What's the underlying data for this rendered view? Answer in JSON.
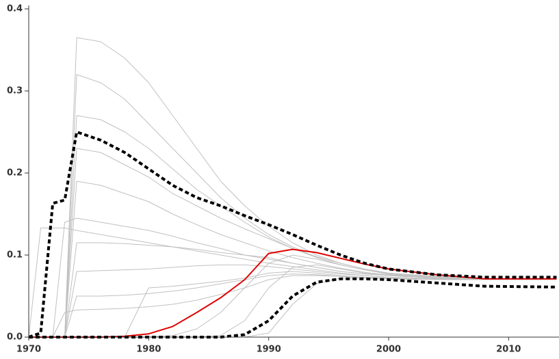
{
  "chart_data": {
    "type": "line",
    "x": [
      1970,
      1971,
      1972,
      1973,
      1974,
      1976,
      1978,
      1980,
      1982,
      1984,
      1986,
      1988,
      1990,
      1992,
      1994,
      1996,
      1998,
      2000,
      2004,
      2008,
      2014
    ],
    "xlim": [
      1970,
      2014.2
    ],
    "xticks": [
      1970,
      1980,
      1990,
      2000,
      2010
    ],
    "ylim": [
      0,
      0.4
    ],
    "yticks": [
      {
        "value": 0,
        "label": "0.0"
      },
      {
        "value": 0.1,
        "label": "0.1"
      },
      {
        "value": 0.2,
        "label": "0.2"
      },
      {
        "value": 0.3,
        "label": "0.3"
      },
      {
        "value": 0.4,
        "label": "0.4"
      }
    ],
    "series": [
      {
        "color": "#c0c0c0",
        "values": [
          0,
          0,
          0,
          0,
          0.365,
          0.36,
          0.34,
          0.31,
          0.27,
          0.23,
          0.19,
          0.16,
          0.135,
          0.115,
          0.1,
          0.09,
          0.083,
          0.078,
          0.073,
          0.071,
          0.07
        ]
      },
      {
        "color": "#c0c0c0",
        "values": [
          0,
          0,
          0,
          0,
          0.32,
          0.31,
          0.29,
          0.26,
          0.23,
          0.2,
          0.17,
          0.145,
          0.125,
          0.11,
          0.097,
          0.088,
          0.082,
          0.077,
          0.072,
          0.07,
          0.07
        ]
      },
      {
        "color": "#c0c0c0",
        "values": [
          0,
          0,
          0,
          0,
          0.27,
          0.265,
          0.25,
          0.23,
          0.205,
          0.18,
          0.16,
          0.14,
          0.122,
          0.108,
          0.097,
          0.088,
          0.082,
          0.077,
          0.072,
          0.07,
          0.07
        ]
      },
      {
        "color": "#c0c0c0",
        "values": [
          0,
          0,
          0,
          0,
          0.23,
          0.225,
          0.21,
          0.195,
          0.175,
          0.16,
          0.145,
          0.132,
          0.12,
          0.108,
          0.098,
          0.09,
          0.083,
          0.078,
          0.073,
          0.071,
          0.07
        ]
      },
      {
        "color": "#c0c0c0",
        "values": [
          0,
          0,
          0,
          0,
          0.19,
          0.185,
          0.175,
          0.165,
          0.15,
          0.137,
          0.125,
          0.115,
          0.105,
          0.097,
          0.09,
          0.084,
          0.079,
          0.076,
          0.072,
          0.07,
          0.07
        ]
      },
      {
        "color": "#c0c0c0",
        "values": [
          0,
          0,
          0,
          0.14,
          0.145,
          0.14,
          0.135,
          0.13,
          0.123,
          0.115,
          0.108,
          0.1,
          0.095,
          0.09,
          0.085,
          0.08,
          0.077,
          0.075,
          0.072,
          0.07,
          0.07
        ]
      },
      {
        "color": "#c0c0c0",
        "values": [
          0,
          0.133,
          0.133,
          0.133,
          0.13,
          0.125,
          0.12,
          0.115,
          0.11,
          0.105,
          0.1,
          0.095,
          0.09,
          0.086,
          0.082,
          0.078,
          0.075,
          0.073,
          0.071,
          0.07,
          0.07
        ]
      },
      {
        "color": "#c0c0c0",
        "values": [
          0,
          0,
          0,
          0,
          0.115,
          0.115,
          0.114,
          0.112,
          0.11,
          0.107,
          0.103,
          0.1,
          0.097,
          0.09,
          0.085,
          0.08,
          0.077,
          0.075,
          0.072,
          0.07,
          0.07
        ]
      },
      {
        "color": "#c0c0c0",
        "values": [
          0,
          0,
          0,
          0,
          0.08,
          0.081,
          0.082,
          0.083,
          0.085,
          0.087,
          0.088,
          0.088,
          0.086,
          0.083,
          0.08,
          0.077,
          0.075,
          0.073,
          0.071,
          0.07,
          0.07
        ]
      },
      {
        "color": "#c0c0c0",
        "values": [
          0,
          0,
          0,
          0,
          0.05,
          0.05,
          0.051,
          0.053,
          0.056,
          0.06,
          0.065,
          0.07,
          0.075,
          0.077,
          0.076,
          0.074,
          0.073,
          0.072,
          0.071,
          0.07,
          0.07
        ]
      },
      {
        "color": "#c0c0c0",
        "values": [
          0,
          0,
          0,
          0.03,
          0.033,
          0.034,
          0.035,
          0.037,
          0.04,
          0.045,
          0.052,
          0.06,
          0.07,
          0.075,
          0.075,
          0.074,
          0.073,
          0.072,
          0.071,
          0.07,
          0.07
        ]
      },
      {
        "color": "#c0c0c0",
        "values": [
          0,
          0,
          0,
          0,
          0,
          0,
          0,
          0.06,
          0.062,
          0.065,
          0.068,
          0.072,
          0.078,
          0.08,
          0.078,
          0.075,
          0.073,
          0.072,
          0.071,
          0.07,
          0.07
        ]
      },
      {
        "color": "#c0c0c0",
        "values": [
          0,
          0,
          0,
          0,
          0,
          0,
          0,
          0,
          0.002,
          0.01,
          0.03,
          0.06,
          0.09,
          0.1,
          0.095,
          0.088,
          0.082,
          0.078,
          0.074,
          0.071,
          0.07
        ]
      },
      {
        "color": "#c0c0c0",
        "values": [
          0,
          0,
          0,
          0,
          0,
          0,
          0,
          0,
          0,
          0,
          0.002,
          0.02,
          0.06,
          0.085,
          0.088,
          0.083,
          0.078,
          0.075,
          0.072,
          0.07,
          0.07
        ]
      },
      {
        "color": "#c0c0c0",
        "values": [
          0,
          0,
          0,
          0,
          0,
          0,
          0,
          0,
          0,
          0,
          0,
          0,
          0.005,
          0.04,
          0.065,
          0.072,
          0.072,
          0.071,
          0.07,
          0.07,
          0.07
        ]
      },
      {
        "color": "#e00000",
        "values": [
          0,
          0,
          0,
          0,
          0,
          0,
          0.001,
          0.004,
          0.013,
          0.03,
          0.048,
          0.07,
          0.102,
          0.107,
          0.103,
          0.096,
          0.089,
          0.083,
          0.076,
          0.071,
          0.071
        ]
      },
      {
        "color": "#000000",
        "linestyle": "dashed",
        "values": [
          0,
          0.005,
          0.163,
          0.167,
          0.25,
          0.24,
          0.225,
          0.205,
          0.185,
          0.17,
          0.16,
          0.148,
          0.137,
          0.125,
          0.112,
          0.1,
          0.09,
          0.083,
          0.076,
          0.073,
          0.073
        ]
      },
      {
        "color": "#000000",
        "linestyle": "dashed",
        "values": [
          0,
          0,
          0,
          0,
          0,
          0,
          0,
          0,
          0,
          0,
          0,
          0.003,
          0.02,
          0.05,
          0.067,
          0.071,
          0.071,
          0.07,
          0.066,
          0.062,
          0.061
        ]
      }
    ]
  }
}
